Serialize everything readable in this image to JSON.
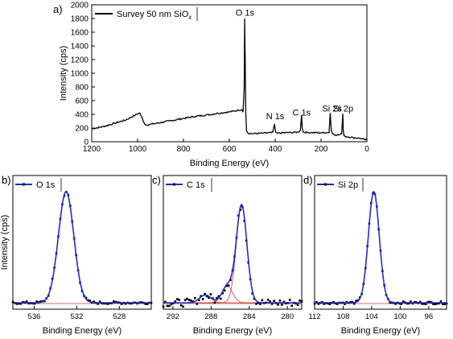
{
  "chart_data": [
    {
      "panel": "a)",
      "type": "line",
      "xlabel": "Binding Energy (eV)",
      "ylabel": "Intensity (cps)",
      "xlim": [
        1200,
        0
      ],
      "ylim": [
        0,
        2000
      ],
      "x_reversed": true,
      "xticks": [
        1200,
        1000,
        800,
        600,
        400,
        200,
        0
      ],
      "yticks": [
        0,
        200,
        400,
        600,
        800,
        1000,
        1200,
        1400,
        1600,
        1800,
        2000
      ],
      "legend": {
        "name": "Survey 50 nm SiO",
        "subscript": "x",
        "placement": "top-left"
      },
      "series_color": "#000000",
      "x": [
        1200,
        1150,
        1100,
        1050,
        1010,
        990,
        975,
        965,
        950,
        900,
        850,
        800,
        750,
        700,
        650,
        600,
        560,
        545,
        540,
        535,
        533,
        531,
        528,
        525,
        520,
        510,
        500,
        450,
        420,
        410,
        403,
        398,
        390,
        330,
        300,
        290,
        285,
        282,
        278,
        260,
        200,
        165,
        160,
        155,
        150,
        140,
        120,
        110,
        105,
        103,
        100,
        95,
        60,
        30,
        20,
        10,
        0
      ],
      "y": [
        190,
        220,
        270,
        320,
        390,
        420,
        300,
        245,
        250,
        280,
        310,
        340,
        370,
        390,
        415,
        435,
        460,
        470,
        430,
        800,
        1800,
        1200,
        400,
        160,
        130,
        120,
        118,
        125,
        130,
        140,
        260,
        140,
        125,
        135,
        140,
        170,
        390,
        200,
        140,
        135,
        130,
        135,
        420,
        160,
        120,
        100,
        100,
        115,
        410,
        160,
        90,
        80,
        60,
        50,
        40,
        30,
        30
      ],
      "annotations": [
        {
          "text": "O 1s",
          "x": 532,
          "y": 1840
        },
        {
          "text": "N 1s",
          "x": 400,
          "y": 330
        },
        {
          "text": "C 1s",
          "x": 285,
          "y": 380
        },
        {
          "text": "Si 2s",
          "x": 152,
          "y": 440
        },
        {
          "text": "Si 2p",
          "x": 103,
          "y": 440
        }
      ]
    },
    {
      "panel": "b)",
      "type": "line",
      "xlabel": "Binding Energy (eV)",
      "ylabel": "Intensity (cps)",
      "xlim": [
        538,
        525
      ],
      "ylim": [
        0,
        1
      ],
      "x_reversed": true,
      "xticks": [
        536,
        532,
        528
      ],
      "legend": {
        "name": "O 1s",
        "placement": "top-left"
      },
      "peak": {
        "center": 533.0,
        "width": 1.7,
        "amplitude": 1.0
      },
      "fit_color": "#1f2ec8",
      "background_color": "#d43a3a",
      "markers": "black-squares"
    },
    {
      "panel": "c)",
      "type": "line",
      "xlabel": "Binding Energy (eV)",
      "xlim": [
        293,
        278.5
      ],
      "ylim": [
        0,
        1
      ],
      "x_reversed": true,
      "xticks": [
        292,
        288,
        284,
        280
      ],
      "legend": {
        "name": "C 1s",
        "placement": "top-left"
      },
      "peaks": [
        {
          "center": 284.8,
          "width": 1.3,
          "amplitude": 0.88
        },
        {
          "center": 286.3,
          "width": 1.3,
          "amplitude": 0.15
        },
        {
          "center": 288.6,
          "width": 1.4,
          "amplitude": 0.07
        }
      ],
      "fit_color": "#1f2ec8",
      "component_color": "#d43a3a",
      "markers": "black-squares"
    },
    {
      "panel": "d)",
      "type": "line",
      "xlabel": "Binding Energy (eV)",
      "xlim": [
        112,
        93.5
      ],
      "ylim": [
        0,
        1
      ],
      "x_reversed": true,
      "xticks": [
        112,
        108,
        104,
        100,
        96
      ],
      "legend": {
        "name": "Si 2p",
        "placement": "top-left"
      },
      "peak": {
        "center": 103.7,
        "width": 1.8,
        "amplitude": 1.0
      },
      "fit_color": "#1f2ec8",
      "background_color": "#d43a3a",
      "markers": "black-squares"
    }
  ]
}
